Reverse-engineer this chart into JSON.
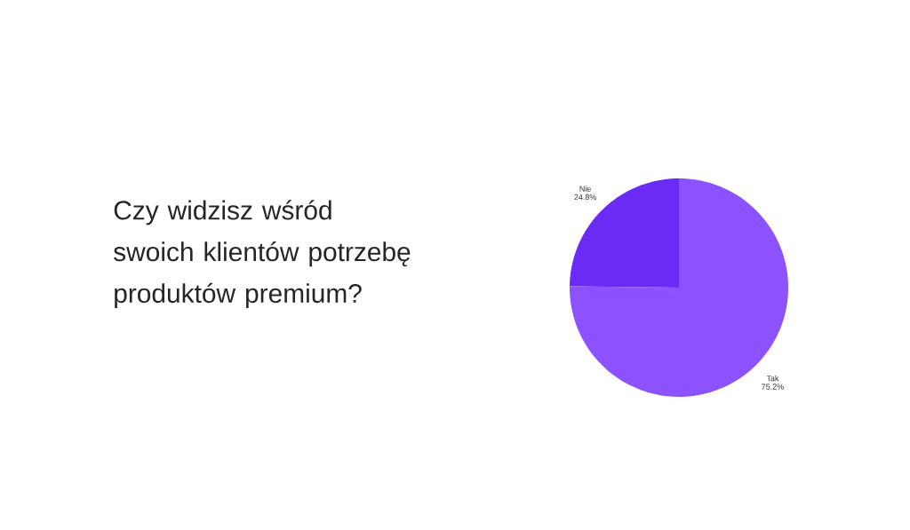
{
  "chart_data": {
    "type": "pie",
    "title": "Czy widzisz wśród swoich klientów potrzebę produktów premium?",
    "categories": [
      "Nie",
      "Tak"
    ],
    "values": [
      24.8,
      75.2
    ],
    "colors": [
      "#6a2bf5",
      "#8c52ff"
    ],
    "value_labels": [
      "24.8%",
      "75.2%"
    ]
  }
}
